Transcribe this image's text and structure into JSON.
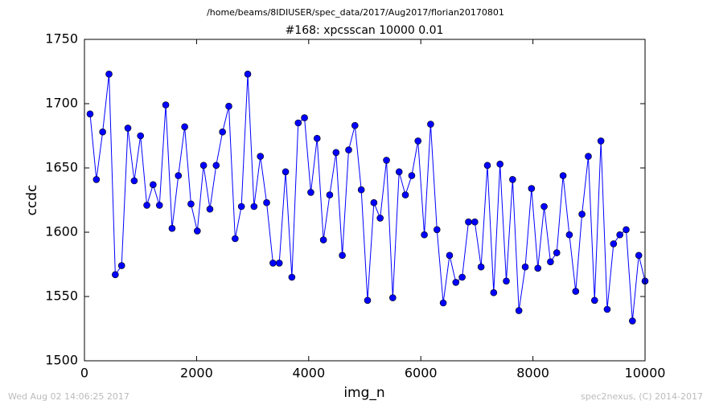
{
  "chart_data": {
    "type": "line",
    "suptitle": "/home/beams/8IDIUSER/spec_data/2017/Aug2017/florian20170801",
    "title": "#168: xpcsscan 10000 0.01",
    "xlabel": "img_n",
    "ylabel": "ccdc",
    "footer_left": "Wed Aug 02 14:06:25 2017",
    "footer_right": "spec2nexus, (C) 2014-2017",
    "color": "#0000ff",
    "marker": true,
    "grid": false,
    "x": [
      100,
      213,
      325,
      438,
      550,
      663,
      775,
      888,
      1000,
      1113,
      1225,
      1338,
      1450,
      1563,
      1675,
      1788,
      1900,
      2013,
      2125,
      2238,
      2350,
      2463,
      2575,
      2688,
      2800,
      2913,
      3025,
      3138,
      3250,
      3363,
      3475,
      3588,
      3700,
      3813,
      3925,
      4038,
      4150,
      4263,
      4375,
      4488,
      4600,
      4713,
      4825,
      4938,
      5050,
      5163,
      5275,
      5388,
      5500,
      5613,
      5725,
      5838,
      5950,
      6063,
      6175,
      6288,
      6400,
      6513,
      6625,
      6738,
      6850,
      6963,
      7075,
      7188,
      7300,
      7413,
      7525,
      7638,
      7750,
      7863,
      7975,
      8088,
      8200,
      8313,
      8425,
      8538,
      8650,
      8763,
      8875,
      8988,
      9100,
      9213,
      9325,
      9438,
      9550,
      9663,
      9775,
      9888,
      10000
    ],
    "values": [
      1692,
      1641,
      1678,
      1723,
      1567,
      1574,
      1681,
      1640,
      1675,
      1621,
      1637,
      1621,
      1699,
      1603,
      1644,
      1682,
      1622,
      1601,
      1652,
      1618,
      1652,
      1678,
      1698,
      1595,
      1620,
      1723,
      1620,
      1659,
      1623,
      1576,
      1576,
      1647,
      1565,
      1685,
      1689,
      1631,
      1673,
      1594,
      1629,
      1662,
      1582,
      1664,
      1683,
      1633,
      1547,
      1623,
      1611,
      1656,
      1549,
      1647,
      1629,
      1644,
      1671,
      1598,
      1684,
      1602,
      1545,
      1582,
      1561,
      1565,
      1608,
      1608,
      1573,
      1652,
      1553,
      1653,
      1562,
      1641,
      1539,
      1573,
      1634,
      1572,
      1620,
      1577,
      1584,
      1644,
      1598,
      1554,
      1614,
      1659,
      1547,
      1671,
      1540,
      1591,
      1598,
      1602,
      1531,
      1582,
      1562
    ],
    "xlim": [
      0,
      10000
    ],
    "ylim": [
      1500,
      1750
    ],
    "xticks": [
      0,
      2000,
      4000,
      6000,
      8000,
      10000
    ],
    "yticks": [
      1500,
      1550,
      1600,
      1650,
      1700,
      1750
    ]
  }
}
